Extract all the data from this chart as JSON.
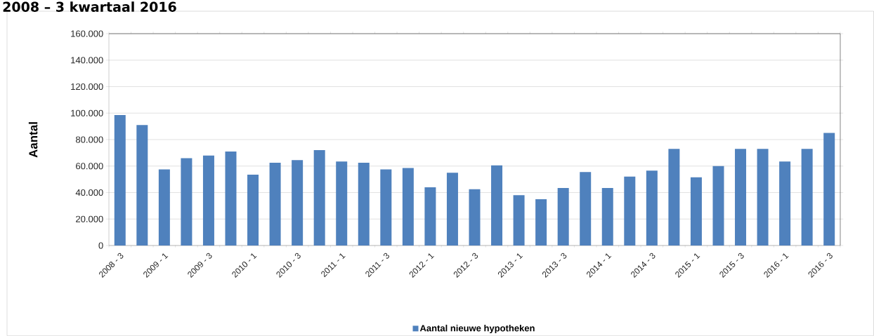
{
  "chart_data": {
    "type": "bar",
    "title": "2008 – 3 kwartaal 2016",
    "ylabel": "Aantal",
    "categories": [
      "2008 - 3",
      null,
      "2009 - 1",
      null,
      "2009 - 3",
      null,
      "2010 - 1",
      null,
      "2010 - 3",
      null,
      "2011 - 1",
      null,
      "2011 - 3",
      null,
      "2012 - 1",
      null,
      "2012 - 3",
      null,
      "2013 - 1",
      null,
      "2013 - 3",
      null,
      "2014 - 1",
      null,
      "2014 - 3",
      null,
      "2015 - 1",
      null,
      "2015 - 3",
      null,
      "2016 - 1",
      null,
      "2016 - 3"
    ],
    "series": [
      {
        "name": "Aantal nieuwe hypotheken",
        "color": "#4f81bd",
        "values": [
          98500,
          91000,
          57500,
          66000,
          68000,
          71000,
          53500,
          62500,
          64500,
          72000,
          63500,
          62500,
          57500,
          58500,
          44000,
          55000,
          42500,
          60500,
          38000,
          35000,
          43500,
          55500,
          43500,
          52000,
          56500,
          73000,
          51500,
          60000,
          73000,
          73000,
          63500,
          73000,
          85000
        ]
      }
    ],
    "ylim": [
      0,
      160000
    ],
    "yticks": [
      {
        "value": 0,
        "label": "0"
      },
      {
        "value": 20000,
        "label": "20.000"
      },
      {
        "value": 40000,
        "label": "40.000"
      },
      {
        "value": 60000,
        "label": "60.000"
      },
      {
        "value": 80000,
        "label": "80.000"
      },
      {
        "value": 100000,
        "label": "100.000"
      },
      {
        "value": 120000,
        "label": "120.000"
      },
      {
        "value": 140000,
        "label": "140.000"
      },
      {
        "value": 160000,
        "label": "160.000"
      }
    ],
    "grid": "y",
    "legend": "bottom"
  }
}
